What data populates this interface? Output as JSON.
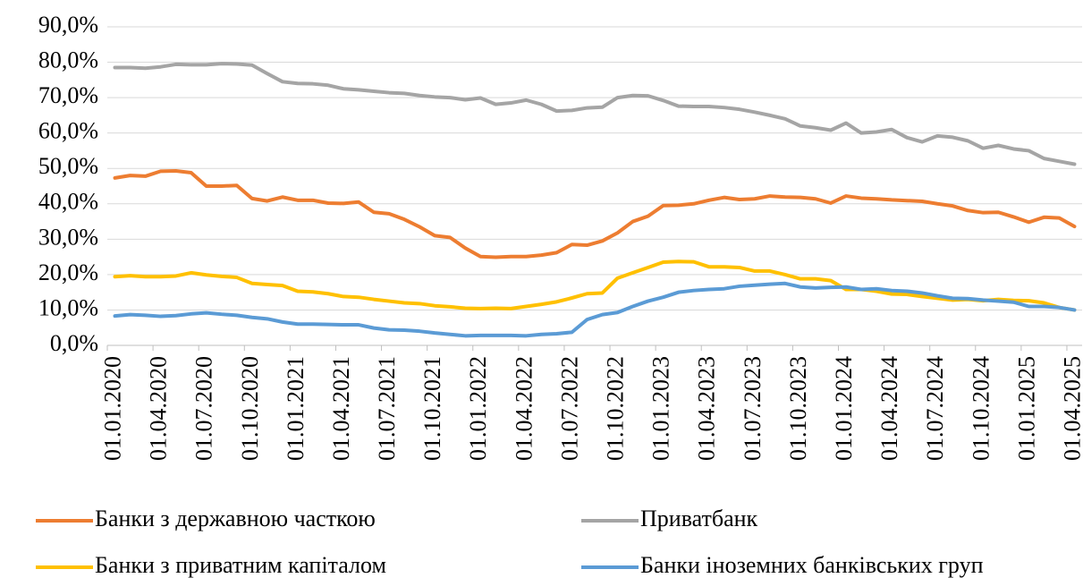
{
  "chart_data": {
    "type": "line",
    "categories": [
      "01.01.2020",
      null,
      null,
      "01.04.2020",
      null,
      null,
      "01.07.2020",
      null,
      null,
      "01.10.2020",
      null,
      null,
      "01.01.2021",
      null,
      null,
      "01.04.2021",
      null,
      null,
      "01.07.2021",
      null,
      null,
      "01.10.2021",
      null,
      null,
      "01.01.2022",
      null,
      null,
      "01.04.2022",
      null,
      null,
      "01.07.2022",
      null,
      null,
      "01.10.2022",
      null,
      null,
      "01.01.2023",
      null,
      null,
      "01.04.2023",
      null,
      null,
      "01.07.2023",
      null,
      null,
      "01.10.2023",
      null,
      null,
      "01.01.2024",
      null,
      null,
      "01.04.2024",
      null,
      null,
      "01.07.2024",
      null,
      null,
      "01.10.2024",
      null,
      null,
      "01.01.2025",
      null,
      null,
      "01.04.2025"
    ],
    "series": [
      {
        "name": "Банки з державною часткою",
        "color": "#ED7D31",
        "values": [
          47.3,
          48.0,
          47.8,
          49.2,
          49.3,
          48.8,
          45.0,
          45.0,
          45.2,
          41.5,
          40.8,
          41.9,
          41.0,
          41.0,
          40.2,
          40.1,
          40.5,
          37.6,
          37.2,
          35.6,
          33.5,
          31.0,
          30.5,
          27.5,
          25.1,
          24.9,
          25.1,
          25.1,
          25.5,
          26.2,
          28.5,
          28.3,
          29.5,
          31.8,
          35.0,
          36.5,
          39.5,
          39.6,
          40.0,
          41.0,
          41.8,
          41.2,
          41.4,
          42.2,
          41.9,
          41.8,
          41.4,
          40.2,
          42.2,
          41.6,
          41.4,
          41.1,
          40.9,
          40.7,
          40.0,
          39.4,
          38.1,
          37.5,
          37.6,
          36.3,
          34.8,
          36.2,
          36.0,
          33.6
        ]
      },
      {
        "name": "Приватбанк",
        "color": "#A5A5A5",
        "values": [
          78.5,
          78.5,
          78.3,
          78.7,
          79.4,
          79.3,
          79.3,
          79.6,
          79.5,
          79.2,
          76.8,
          74.5,
          74.0,
          73.9,
          73.5,
          72.5,
          72.2,
          71.8,
          71.4,
          71.2,
          70.6,
          70.2,
          70.0,
          69.4,
          69.9,
          68.1,
          68.5,
          69.3,
          68.1,
          66.2,
          66.4,
          67.1,
          67.3,
          70.0,
          70.6,
          70.5,
          69.2,
          67.6,
          67.5,
          67.5,
          67.2,
          66.7,
          65.9,
          65.0,
          64.0,
          62.0,
          61.5,
          60.8,
          62.8,
          60.0,
          60.3,
          61.0,
          58.7,
          57.5,
          59.2,
          58.8,
          57.8,
          55.7,
          56.5,
          55.5,
          55.0,
          52.8,
          52.0,
          51.2
        ]
      },
      {
        "name": "Банки з приватним капіталом",
        "color": "#FFC000",
        "values": [
          19.4,
          19.7,
          19.4,
          19.4,
          19.6,
          20.5,
          19.9,
          19.5,
          19.2,
          17.5,
          17.2,
          16.9,
          15.3,
          15.1,
          14.6,
          13.8,
          13.6,
          13.0,
          12.5,
          12.0,
          11.8,
          11.2,
          10.9,
          10.5,
          10.4,
          10.5,
          10.4,
          11.0,
          11.6,
          12.3,
          13.4,
          14.6,
          14.8,
          19.0,
          20.5,
          22.0,
          23.5,
          23.7,
          23.6,
          22.2,
          22.2,
          22.0,
          21.0,
          21.0,
          20.0,
          18.8,
          18.8,
          18.3,
          15.8,
          15.8,
          15.3,
          14.5,
          14.4,
          13.8,
          13.3,
          12.8,
          13.0,
          12.6,
          13.0,
          12.7,
          12.6,
          12.0,
          10.7,
          10.0
        ]
      },
      {
        "name": "Банки іноземних банківських груп",
        "color": "#5B9BD5",
        "values": [
          8.3,
          8.7,
          8.5,
          8.2,
          8.4,
          8.9,
          9.2,
          8.8,
          8.5,
          7.9,
          7.5,
          6.6,
          6.0,
          6.0,
          5.9,
          5.8,
          5.8,
          4.9,
          4.4,
          4.3,
          4.0,
          3.5,
          3.1,
          2.7,
          2.8,
          2.8,
          2.8,
          2.7,
          3.1,
          3.3,
          3.7,
          7.3,
          8.7,
          9.3,
          11.0,
          12.5,
          13.6,
          15.0,
          15.5,
          15.8,
          16.0,
          16.7,
          17.0,
          17.3,
          17.5,
          16.5,
          16.2,
          16.4,
          16.5,
          15.8,
          16.0,
          15.5,
          15.3,
          14.8,
          14.0,
          13.3,
          13.2,
          12.8,
          12.5,
          12.2,
          11.0,
          11.0,
          10.7,
          10.0
        ]
      }
    ],
    "ylim": [
      0,
      90
    ],
    "yticks": [
      {
        "value": 0,
        "label": "0,0%"
      },
      {
        "value": 10,
        "label": "10,0%"
      },
      {
        "value": 20,
        "label": "20,0%"
      },
      {
        "value": 30,
        "label": "30,0%"
      },
      {
        "value": 40,
        "label": "40,0%"
      },
      {
        "value": 50,
        "label": "50,0%"
      },
      {
        "value": 60,
        "label": "60,0%"
      },
      {
        "value": 70,
        "label": "70,0%"
      },
      {
        "value": 80,
        "label": "80,0%"
      },
      {
        "value": 90,
        "label": "90,0%"
      }
    ],
    "grid": true
  }
}
